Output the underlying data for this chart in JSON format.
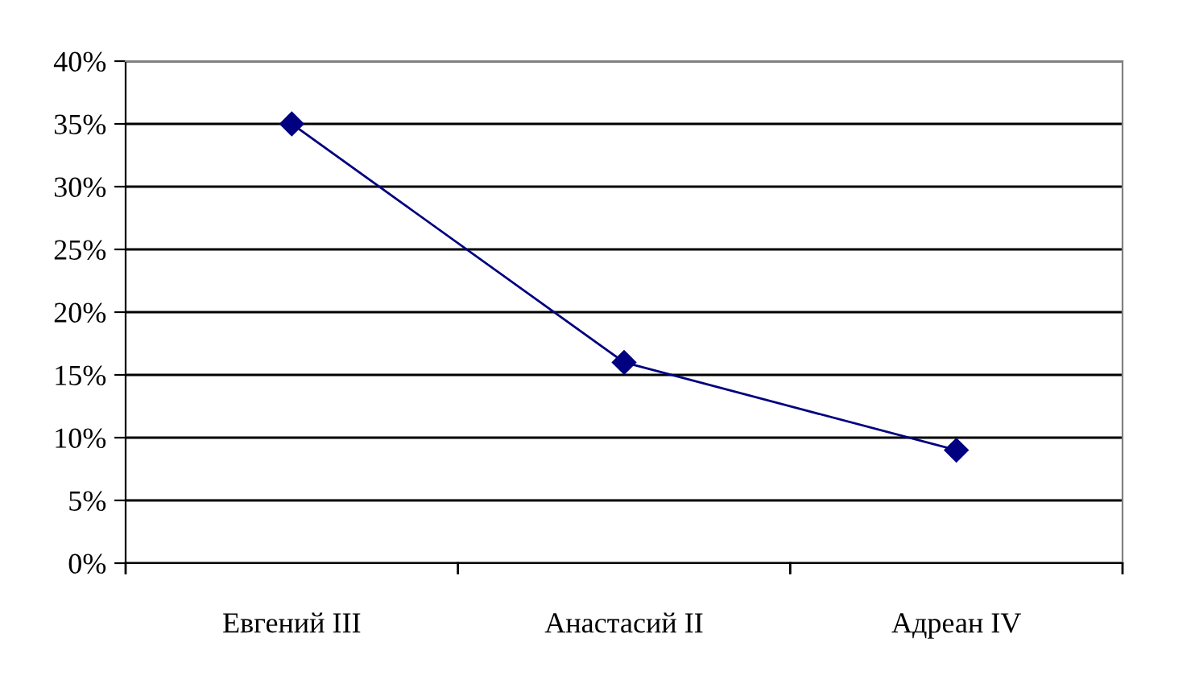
{
  "chart_data": {
    "type": "line",
    "categories": [
      "Евгений III",
      "Анастасий II",
      "Адреан IV"
    ],
    "series": [
      {
        "color": "#000080",
        "values": [
          35,
          16,
          9
        ]
      }
    ],
    "ylim": [
      0,
      40
    ],
    "yticks": [
      {
        "value": 0,
        "label": "0%"
      },
      {
        "value": 5,
        "label": "5%"
      },
      {
        "value": 10,
        "label": "10%"
      },
      {
        "value": 15,
        "label": "15%"
      },
      {
        "value": 20,
        "label": "20%"
      },
      {
        "value": 25,
        "label": "25%"
      },
      {
        "value": 30,
        "label": "30%"
      },
      {
        "value": 35,
        "label": "35%"
      },
      {
        "value": 40,
        "label": "40%"
      }
    ],
    "grid": "y",
    "marker": "diamond",
    "line_style": "solid",
    "legend": false
  }
}
